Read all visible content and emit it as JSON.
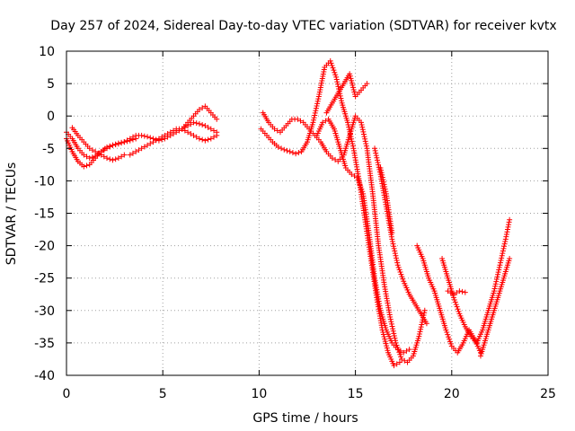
{
  "chart_data": {
    "type": "scatter",
    "title": "Day 257 of 2024, Sidereal Day-to-day VTEC variation (SDTVAR) for receiver kvtx",
    "xlabel": "GPS time / hours",
    "ylabel": "SDTVAR / TECUs",
    "xlim": [
      0,
      25
    ],
    "ylim": [
      -40,
      10
    ],
    "xticks": [
      0,
      5,
      10,
      15,
      20,
      25
    ],
    "yticks": [
      10,
      5,
      0,
      -5,
      -10,
      -15,
      -20,
      -25,
      -30,
      -35,
      -40
    ],
    "grid": true,
    "marker": "+",
    "color": "#ff0000",
    "series": [
      {
        "x": [
          0.0,
          0.3,
          0.6,
          0.9,
          1.2,
          1.5,
          1.8,
          2.1,
          2.4,
          2.7,
          3.0,
          3.3,
          3.6,
          3.9,
          4.2,
          4.5,
          4.8,
          5.1,
          5.4,
          5.7,
          6.0,
          6.3,
          6.6,
          6.9,
          7.2,
          7.5,
          7.8
        ],
        "y": [
          -3.5,
          -5.5,
          -7.0,
          -7.8,
          -7.5,
          -6.5,
          -5.5,
          -5.0,
          -4.5,
          -4.2,
          -4.0,
          -3.5,
          -3.0,
          -3.0,
          -3.2,
          -3.5,
          -3.8,
          -3.5,
          -3.0,
          -2.5,
          -2.0,
          -1.5,
          -1.0,
          -1.2,
          -1.5,
          -2.0,
          -2.5
        ]
      },
      {
        "x": [
          0.0,
          0.3,
          0.6,
          0.9,
          1.2,
          1.5,
          1.8,
          2.1,
          2.4,
          2.7,
          3.0,
          3.3,
          3.6
        ],
        "y": [
          -2.5,
          -3.5,
          -5.0,
          -6.0,
          -6.5,
          -6.2,
          -5.5,
          -4.8,
          -4.5,
          -4.3,
          -4.0,
          -3.8,
          -3.5
        ]
      },
      {
        "x": [
          0.3,
          0.6,
          0.9,
          1.2,
          1.5,
          1.8,
          2.1,
          2.4,
          2.7,
          3.0
        ],
        "y": [
          -1.8,
          -3.0,
          -4.0,
          -5.0,
          -5.5,
          -6.0,
          -6.5,
          -6.8,
          -6.5,
          -6.0
        ]
      },
      {
        "x": [
          3.3,
          3.6,
          3.9,
          4.2,
          4.5,
          4.8,
          5.1,
          5.4,
          5.7,
          6.0,
          6.3,
          6.6,
          6.9,
          7.2,
          7.5,
          7.8
        ],
        "y": [
          -6.0,
          -5.5,
          -5.0,
          -4.5,
          -4.0,
          -3.5,
          -3.0,
          -2.5,
          -2.0,
          -2.0,
          -2.5,
          -3.0,
          -3.5,
          -3.8,
          -3.5,
          -3.0
        ]
      },
      {
        "x": [
          6.0,
          6.3,
          6.6,
          6.9,
          7.2,
          7.5,
          7.8
        ],
        "y": [
          -2.0,
          -1.0,
          0.0,
          1.0,
          1.5,
          0.5,
          -0.5
        ]
      },
      {
        "x": [
          10.1,
          10.4,
          10.7,
          11.0,
          11.3,
          11.6,
          11.9,
          12.2,
          12.5,
          12.8,
          13.1,
          13.4,
          13.7,
          14.0,
          14.3,
          14.6,
          14.9,
          15.2,
          15.5,
          15.8,
          16.1,
          16.4,
          16.7,
          17.0,
          17.3
        ],
        "y": [
          -2.0,
          -3.0,
          -4.0,
          -4.8,
          -5.2,
          -5.5,
          -5.8,
          -5.5,
          -4.0,
          -1.0,
          3.0,
          7.5,
          8.5,
          6.0,
          2.0,
          -1.0,
          -5.0,
          -10.0,
          -16.0,
          -22.0,
          -28.0,
          -33.0,
          -36.5,
          -38.5,
          -38.0
        ]
      },
      {
        "x": [
          10.2,
          10.5,
          10.8,
          11.1,
          11.4,
          11.7,
          12.0,
          12.3,
          12.6,
          12.9,
          13.2,
          13.5,
          13.8,
          14.1,
          14.4,
          14.7,
          15.0,
          15.3,
          15.6,
          15.9,
          16.2,
          16.5,
          16.8,
          17.1,
          17.4,
          17.7,
          18.0,
          18.3,
          18.6
        ],
        "y": [
          0.5,
          -1.0,
          -2.0,
          -2.5,
          -1.5,
          -0.5,
          -0.5,
          -1.0,
          -2.0,
          -3.0,
          -4.0,
          -5.5,
          -6.5,
          -7.0,
          -6.0,
          -3.0,
          0.0,
          -1.0,
          -5.0,
          -12.0,
          -20.0,
          -26.0,
          -31.0,
          -35.0,
          -37.5,
          -38.0,
          -37.0,
          -34.0,
          -30.0
        ]
      },
      {
        "x": [
          13.0,
          13.3,
          13.6,
          13.9,
          14.2,
          14.5,
          14.8,
          15.1,
          15.4,
          15.7,
          16.0,
          16.3,
          16.6,
          16.9,
          17.2,
          17.5,
          17.8
        ],
        "y": [
          -3.0,
          -1.0,
          -0.5,
          -2.0,
          -5.0,
          -8.0,
          -9.0,
          -9.5,
          -12.0,
          -18.0,
          -25.0,
          -30.0,
          -33.0,
          -35.0,
          -36.0,
          -36.5,
          -36.0
        ]
      },
      {
        "x": [
          13.5,
          13.8,
          14.1,
          14.4,
          14.7,
          15.0,
          15.3,
          15.6
        ],
        "y": [
          0.5,
          2.0,
          3.5,
          5.0,
          6.5,
          3.0,
          4.0,
          5.0
        ]
      },
      {
        "x": [
          16.0,
          16.3,
          16.6,
          16.9,
          17.2,
          17.5,
          17.8,
          18.1,
          18.4,
          18.7
        ],
        "y": [
          -5.0,
          -9.0,
          -14.0,
          -19.0,
          -23.0,
          -25.5,
          -27.5,
          -29.0,
          -30.5,
          -32.0
        ]
      },
      {
        "x": [
          16.3,
          16.6,
          16.9
        ],
        "y": [
          -8.0,
          -12.0,
          -18.0
        ]
      },
      {
        "x": [
          18.2,
          18.5,
          18.8,
          19.1,
          19.4,
          19.7,
          20.0,
          20.3,
          20.6,
          20.9,
          21.2,
          21.5
        ],
        "y": [
          -20.0,
          -22.0,
          -25.0,
          -27.0,
          -30.0,
          -33.0,
          -35.5,
          -36.5,
          -35.0,
          -33.0,
          -34.5,
          -36.5
        ]
      },
      {
        "x": [
          19.5,
          19.8,
          20.1,
          20.4,
          20.7,
          21.0,
          21.3
        ],
        "y": [
          -22.0,
          -25.0,
          -28.0,
          -30.5,
          -32.5,
          -34.0,
          -35.0
        ]
      },
      {
        "x": [
          19.8,
          20.1,
          20.4,
          20.7
        ],
        "y": [
          -27.0,
          -27.5,
          -27.0,
          -27.2
        ]
      },
      {
        "x": [
          21.3,
          21.6,
          21.9,
          22.2,
          22.5,
          22.8,
          23.0
        ],
        "y": [
          -35.0,
          -33.0,
          -30.0,
          -27.0,
          -23.0,
          -19.0,
          -16.0
        ]
      },
      {
        "x": [
          21.5,
          21.8,
          22.1,
          22.4,
          22.7,
          23.0
        ],
        "y": [
          -37.0,
          -34.0,
          -31.0,
          -28.0,
          -25.0,
          -22.0
        ]
      }
    ]
  }
}
